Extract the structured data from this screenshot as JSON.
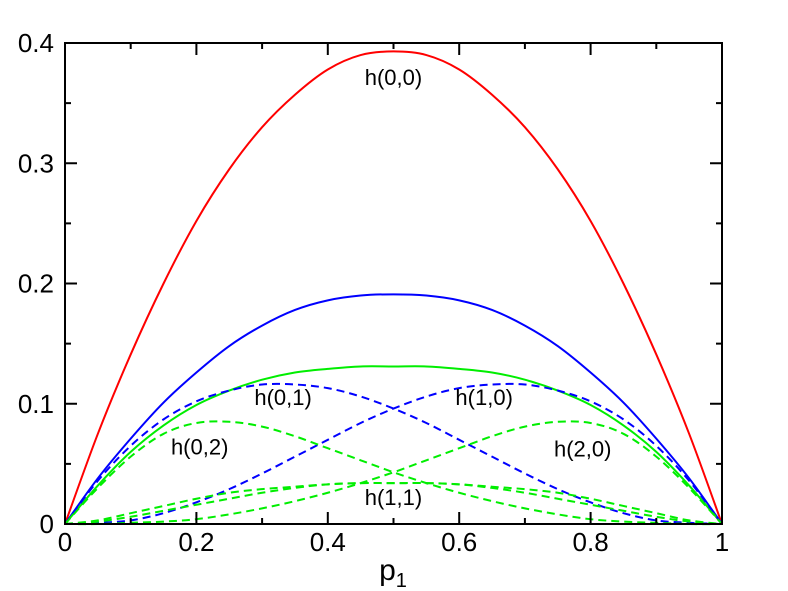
{
  "chart_data": {
    "type": "line",
    "title": "",
    "xlabel": "p",
    "xlabel_subscript": "1",
    "ylabel": "",
    "xlim": [
      0,
      1
    ],
    "ylim": [
      0,
      0.4
    ],
    "x_ticks": [
      "0",
      "0.2",
      "0.4",
      "0.6",
      "0.8",
      "1"
    ],
    "y_ticks": [
      "0",
      "0.1",
      "0.2",
      "0.3",
      "0.4"
    ],
    "grid": false,
    "legend": "none",
    "series": [
      {
        "color": "#ff0000",
        "dash": "solid",
        "x": [
          0,
          0.05,
          0.1,
          0.15,
          0.2,
          0.25,
          0.3,
          0.35,
          0.4,
          0.45,
          0.5,
          0.55,
          0.6,
          0.65,
          0.7,
          0.75,
          0.8,
          0.85,
          0.9,
          0.95,
          1
        ],
        "y": [
          0,
          0.075,
          0.141,
          0.2,
          0.252,
          0.295,
          0.33,
          0.357,
          0.378,
          0.39,
          0.393,
          0.39,
          0.378,
          0.357,
          0.33,
          0.295,
          0.252,
          0.2,
          0.141,
          0.075,
          0
        ]
      },
      {
        "color": "#0000ff",
        "dash": "solid",
        "x": [
          0,
          0.05,
          0.1,
          0.15,
          0.2,
          0.25,
          0.3,
          0.35,
          0.4,
          0.45,
          0.5,
          0.55,
          0.6,
          0.65,
          0.7,
          0.75,
          0.8,
          0.85,
          0.9,
          0.95,
          1
        ],
        "y": [
          0,
          0.038,
          0.071,
          0.101,
          0.126,
          0.148,
          0.165,
          0.178,
          0.186,
          0.19,
          0.191,
          0.19,
          0.186,
          0.178,
          0.165,
          0.148,
          0.126,
          0.101,
          0.071,
          0.038,
          0
        ]
      },
      {
        "color": "#00ee00",
        "dash": "solid",
        "x": [
          0,
          0.05,
          0.1,
          0.15,
          0.2,
          0.25,
          0.3,
          0.35,
          0.4,
          0.45,
          0.5,
          0.55,
          0.6,
          0.65,
          0.7,
          0.75,
          0.8,
          0.85,
          0.9,
          0.95,
          1
        ],
        "y": [
          0,
          0.032,
          0.06,
          0.082,
          0.099,
          0.111,
          0.12,
          0.126,
          0.129,
          0.131,
          0.131,
          0.131,
          0.129,
          0.126,
          0.12,
          0.111,
          0.099,
          0.082,
          0.06,
          0.032,
          0
        ]
      },
      {
        "name": "h(0,1)",
        "color": "#0000ff",
        "dash": "dashed",
        "x": [
          0,
          0.05,
          0.1,
          0.15,
          0.2,
          0.25,
          0.3,
          0.35,
          0.4,
          0.45,
          0.5,
          0.55,
          0.6,
          0.65,
          0.7,
          0.75,
          0.8,
          0.85,
          0.9,
          0.95,
          1
        ],
        "y": [
          0,
          0.036,
          0.065,
          0.087,
          0.102,
          0.111,
          0.116,
          0.116,
          0.113,
          0.106,
          0.096,
          0.084,
          0.07,
          0.056,
          0.042,
          0.029,
          0.018,
          0.009,
          0.003,
          0.001,
          0
        ]
      },
      {
        "name": "h(1,0)",
        "color": "#0000ff",
        "dash": "dashed",
        "x": [
          0,
          0.05,
          0.1,
          0.15,
          0.2,
          0.25,
          0.3,
          0.35,
          0.4,
          0.45,
          0.5,
          0.55,
          0.6,
          0.65,
          0.7,
          0.75,
          0.8,
          0.85,
          0.9,
          0.95,
          1
        ],
        "y": [
          0,
          0.001,
          0.003,
          0.009,
          0.018,
          0.029,
          0.042,
          0.056,
          0.07,
          0.084,
          0.096,
          0.106,
          0.113,
          0.116,
          0.116,
          0.111,
          0.102,
          0.087,
          0.065,
          0.036,
          0
        ]
      },
      {
        "name": "h(0,2)",
        "color": "#00ee00",
        "dash": "dashed",
        "x": [
          0,
          0.05,
          0.1,
          0.15,
          0.2,
          0.25,
          0.3,
          0.35,
          0.4,
          0.45,
          0.5,
          0.55,
          0.6,
          0.65,
          0.7,
          0.75,
          0.8,
          0.85,
          0.9,
          0.95,
          1
        ],
        "y": [
          0,
          0.03,
          0.056,
          0.075,
          0.084,
          0.085,
          0.081,
          0.073,
          0.063,
          0.053,
          0.043,
          0.034,
          0.026,
          0.019,
          0.013,
          0.008,
          0.004,
          0.002,
          0.001,
          0,
          0
        ]
      },
      {
        "name": "h(2,0)",
        "color": "#00ee00",
        "dash": "dashed",
        "x": [
          0,
          0.05,
          0.1,
          0.15,
          0.2,
          0.25,
          0.3,
          0.35,
          0.4,
          0.45,
          0.5,
          0.55,
          0.6,
          0.65,
          0.7,
          0.75,
          0.8,
          0.85,
          0.9,
          0.95,
          1
        ],
        "y": [
          0,
          0,
          0.001,
          0.002,
          0.004,
          0.008,
          0.013,
          0.019,
          0.026,
          0.034,
          0.043,
          0.053,
          0.063,
          0.073,
          0.081,
          0.085,
          0.084,
          0.075,
          0.056,
          0.03,
          0
        ]
      },
      {
        "name": "h(1,1)",
        "color": "#00ee00",
        "dash": "dashed",
        "x": [
          0,
          0.05,
          0.1,
          0.15,
          0.2,
          0.25,
          0.3,
          0.35,
          0.4,
          0.45,
          0.5,
          0.55,
          0.6,
          0.65,
          0.7,
          0.75,
          0.8,
          0.85,
          0.9,
          0.95,
          1
        ],
        "y": [
          0,
          0.002,
          0.006,
          0.011,
          0.016,
          0.021,
          0.026,
          0.03,
          0.033,
          0.034,
          0.034,
          0.034,
          0.033,
          0.031,
          0.029,
          0.026,
          0.021,
          0.015,
          0.009,
          0.003,
          0
        ]
      },
      {
        "color": "#00ee00",
        "dash": "dashed",
        "x": [
          0,
          0.05,
          0.1,
          0.15,
          0.2,
          0.25,
          0.3,
          0.35,
          0.4,
          0.45,
          0.5,
          0.55,
          0.6,
          0.65,
          0.7,
          0.75,
          0.8,
          0.85,
          0.9,
          0.95,
          1
        ],
        "y": [
          0,
          0.003,
          0.009,
          0.015,
          0.021,
          0.026,
          0.029,
          0.031,
          0.033,
          0.034,
          0.034,
          0.034,
          0.033,
          0.03,
          0.026,
          0.021,
          0.016,
          0.011,
          0.006,
          0.002,
          0
        ]
      }
    ],
    "annotations": [
      {
        "text": "h(0,0)",
        "x": 0.5,
        "y": 0.365
      },
      {
        "text": "h(0,1)",
        "x": 0.332,
        "y": 0.099
      },
      {
        "text": "h(1,0)",
        "x": 0.638,
        "y": 0.099
      },
      {
        "text": "h(0,2)",
        "x": 0.205,
        "y": 0.058
      },
      {
        "text": "h(2,0)",
        "x": 0.788,
        "y": 0.056
      },
      {
        "text": "h(1,1)",
        "x": 0.5,
        "y": 0.016
      }
    ]
  }
}
